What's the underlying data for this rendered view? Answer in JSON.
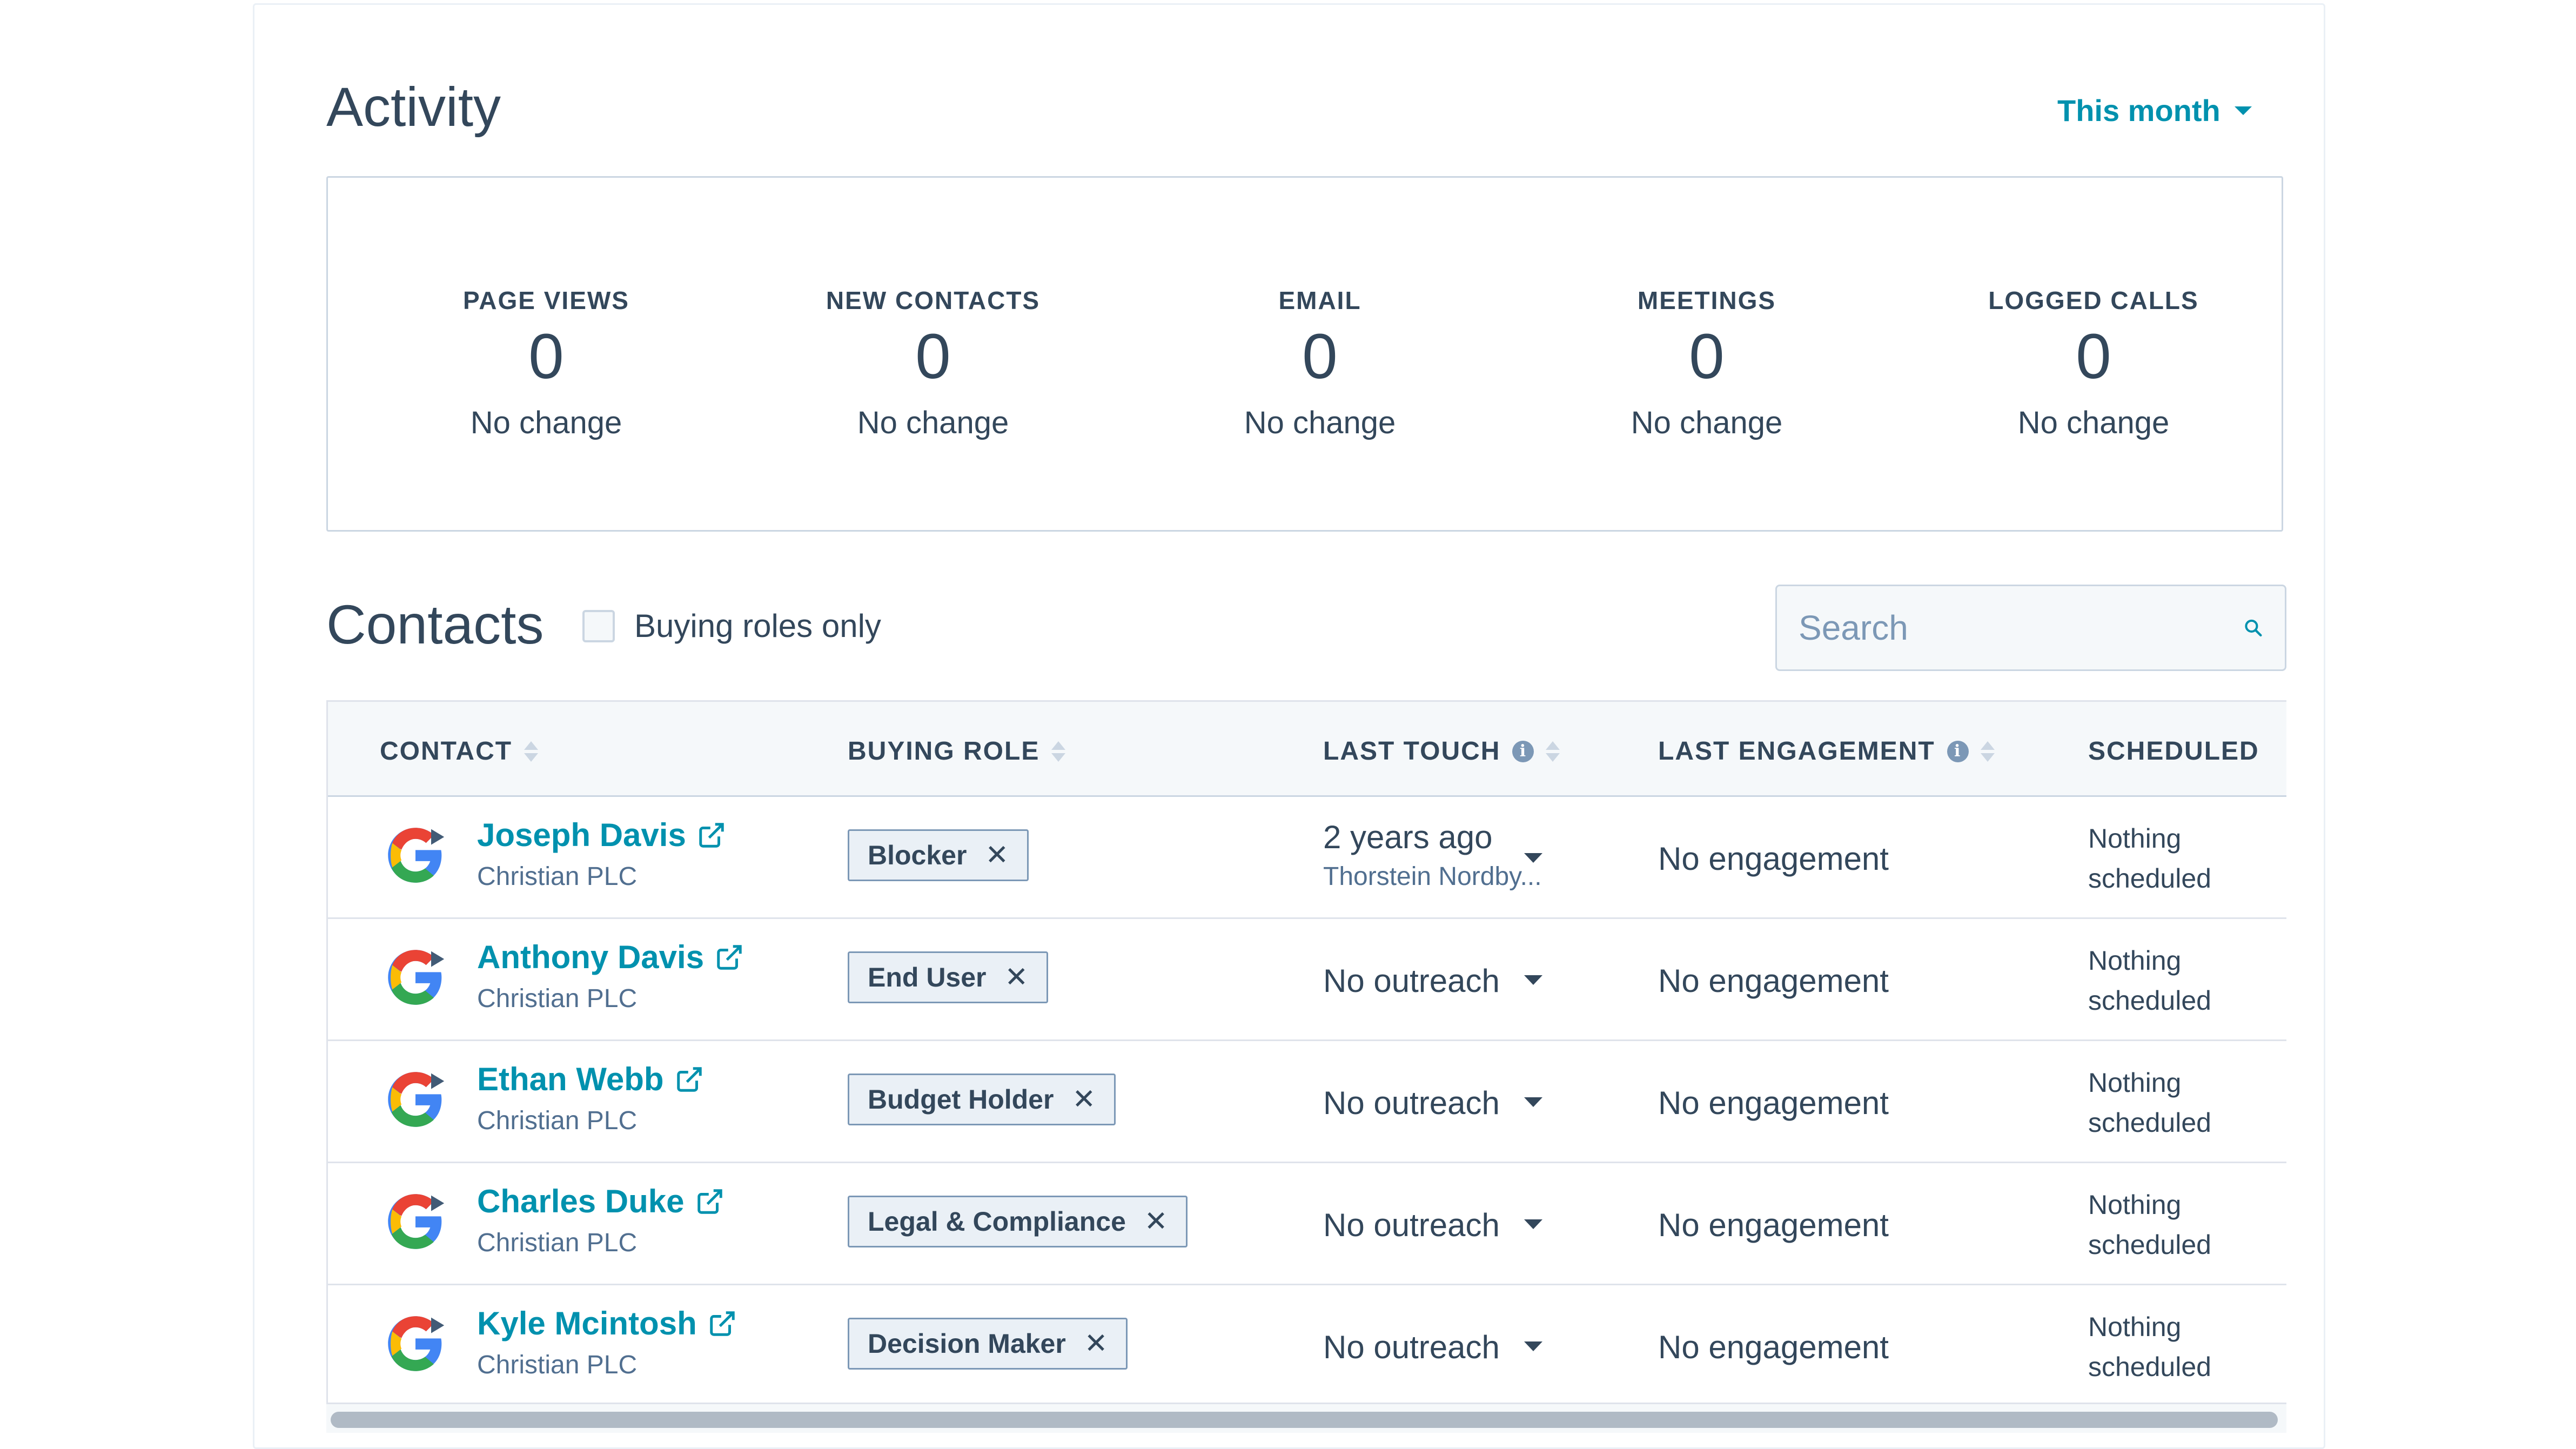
{
  "activity": {
    "title": "Activity",
    "range_label": "This month",
    "stats": [
      {
        "label": "PAGE VIEWS",
        "value": "0",
        "change": "No change"
      },
      {
        "label": "NEW CONTACTS",
        "value": "0",
        "change": "No change"
      },
      {
        "label": "EMAIL",
        "value": "0",
        "change": "No change"
      },
      {
        "label": "MEETINGS",
        "value": "0",
        "change": "No change"
      },
      {
        "label": "LOGGED CALLS",
        "value": "0",
        "change": "No change"
      }
    ]
  },
  "contacts": {
    "title": "Contacts",
    "buying_roles_label": "Buying roles only",
    "search_placeholder": "Search",
    "columns": {
      "contact": "CONTACT",
      "buying_role": "BUYING ROLE",
      "last_touch": "LAST TOUCH",
      "last_engagement": "LAST ENGAGEMENT",
      "scheduled": "SCHEDULED"
    },
    "rows": [
      {
        "name": "Joseph Davis",
        "company": "Christian PLC",
        "role": "Blocker",
        "last_touch": "2 years ago",
        "last_touch_by": "Thorstein Nordby...",
        "engagement": "No engagement",
        "scheduled": "Nothing scheduled"
      },
      {
        "name": "Anthony Davis",
        "company": "Christian PLC",
        "role": "End User",
        "last_touch": "No outreach",
        "last_touch_by": "",
        "engagement": "No engagement",
        "scheduled": "Nothing scheduled"
      },
      {
        "name": "Ethan Webb",
        "company": "Christian PLC",
        "role": "Budget Holder",
        "last_touch": "No outreach",
        "last_touch_by": "",
        "engagement": "No engagement",
        "scheduled": "Nothing scheduled"
      },
      {
        "name": "Charles Duke",
        "company": "Christian PLC",
        "role": "Legal & Compliance",
        "last_touch": "No outreach",
        "last_touch_by": "",
        "engagement": "No engagement",
        "scheduled": "Nothing scheduled"
      },
      {
        "name": "Kyle Mcintosh",
        "company": "Christian PLC",
        "role": "Decision Maker",
        "last_touch": "No outreach",
        "last_touch_by": "",
        "engagement": "No engagement",
        "scheduled": "Nothing scheduled"
      }
    ]
  },
  "icons": {
    "range_caret": "caret-down-icon",
    "search": "search-icon",
    "sort": "sort-icon",
    "info": "info-icon",
    "external_link": "external-link-icon",
    "company_logo": "google-logo-icon",
    "tag_remove": "close-icon",
    "role_dropdown": "caret-down-icon"
  },
  "colors": {
    "accent": "#0091ae",
    "text": "#33475b",
    "muted": "#516f90",
    "border": "#cbd6e2",
    "header_bg": "#f5f8fa",
    "tag_bg": "#eaf0f6"
  }
}
